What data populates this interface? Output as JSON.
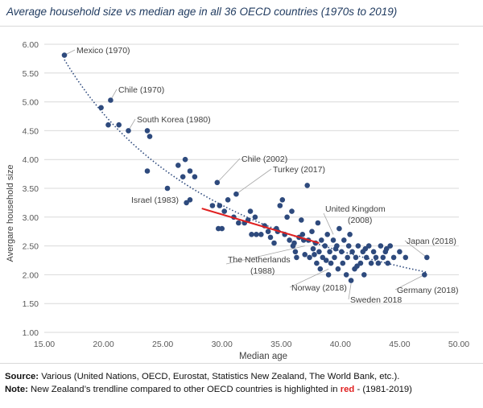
{
  "title": "Average household size vs median age in all 36 OECD countries (1970s to 2019)",
  "footer": {
    "source_label": "Source:",
    "source_text": "Various (United Nations, OECD, Eurostat, Statistics New Zealand, The World Bank, etc.).",
    "note_label": "Note:",
    "note_text_before": "New Zealand’s trendline compared to other OECD countries is highlighted in",
    "note_red_word": "red",
    "note_text_after": "- (1981-2019)"
  },
  "colors": {
    "points": "#2e4a7d",
    "trendline": "#2e4a7d",
    "highlight": "#e02020",
    "grid": "#d9d9d9",
    "leader": "#a6a6a6"
  },
  "chart_data": {
    "type": "scatter",
    "xlabel": "Median age",
    "ylabel": "Avergare household size",
    "xlim": [
      15,
      50
    ],
    "ylim": [
      1,
      6
    ],
    "xticks": [
      "15.00",
      "20.00",
      "25.00",
      "30.00",
      "35.00",
      "40.00",
      "45.00",
      "50.00"
    ],
    "yticks": [
      "1.00",
      "1.50",
      "2.00",
      "2.50",
      "3.00",
      "3.50",
      "4.00",
      "4.50",
      "5.00",
      "5.50",
      "6.00"
    ],
    "grid": "horizontal",
    "trendline": "dotted power trend",
    "highlight_series": {
      "x": [
        28.3,
        38.2
      ],
      "y": [
        3.15,
        2.55
      ]
    },
    "annotations": [
      {
        "text": "Mexico (1970)",
        "x": 16.7,
        "y": 5.81
      },
      {
        "text": "Chile (1970)",
        "x": 20.6,
        "y": 5.03
      },
      {
        "text": "South Korea (1980)",
        "x": 22.1,
        "y": 4.5
      },
      {
        "text": "Chile (2002)",
        "x": 29.6,
        "y": 3.6
      },
      {
        "text": "Turkey (2017)",
        "x": 31.2,
        "y": 3.4
      },
      {
        "text": "Israel (1983)",
        "x": 25.4,
        "y": 3.5
      },
      {
        "text": "United Kingdom (2008)",
        "x": 39.4,
        "y": 2.7
      },
      {
        "text": "Japan (2018)",
        "x": 47.3,
        "y": 2.3
      },
      {
        "text": "The Netherlands (1988)",
        "x": 37.0,
        "y": 2.5
      },
      {
        "text": "Norway (2018)",
        "x": 39.0,
        "y": 2.1
      },
      {
        "text": "Sweden 2018",
        "x": 40.9,
        "y": 1.85
      },
      {
        "text": "Germany (2018)",
        "x": 47.1,
        "y": 2.0
      }
    ],
    "points": [
      [
        16.7,
        5.81
      ],
      [
        20.6,
        5.03
      ],
      [
        19.8,
        4.9
      ],
      [
        20.4,
        4.6
      ],
      [
        21.3,
        4.6
      ],
      [
        22.1,
        4.5
      ],
      [
        23.7,
        4.5
      ],
      [
        23.9,
        4.4
      ],
      [
        23.7,
        3.8
      ],
      [
        26.3,
        3.9
      ],
      [
        26.9,
        4.0
      ],
      [
        27.3,
        3.8
      ],
      [
        26.7,
        3.7
      ],
      [
        27.7,
        3.7
      ],
      [
        27.0,
        3.25
      ],
      [
        27.3,
        3.3
      ],
      [
        25.4,
        3.5
      ],
      [
        29.6,
        3.6
      ],
      [
        29.8,
        3.2
      ],
      [
        29.2,
        3.2
      ],
      [
        30.2,
        3.1
      ],
      [
        29.7,
        2.8
      ],
      [
        30.0,
        2.8
      ],
      [
        30.5,
        3.3
      ],
      [
        31.2,
        3.4
      ],
      [
        31.0,
        3.0
      ],
      [
        31.4,
        2.9
      ],
      [
        31.9,
        2.9
      ],
      [
        32.2,
        2.95
      ],
      [
        32.4,
        3.1
      ],
      [
        32.8,
        3.0
      ],
      [
        32.5,
        2.7
      ],
      [
        32.9,
        2.7
      ],
      [
        33.3,
        2.7
      ],
      [
        33.6,
        2.85
      ],
      [
        33.9,
        2.75
      ],
      [
        34.1,
        2.65
      ],
      [
        34.4,
        2.55
      ],
      [
        34.6,
        2.8
      ],
      [
        34.9,
        3.2
      ],
      [
        35.1,
        3.3
      ],
      [
        35.3,
        2.7
      ],
      [
        35.5,
        3.0
      ],
      [
        35.7,
        2.6
      ],
      [
        35.9,
        3.1
      ],
      [
        36.0,
        2.5
      ],
      [
        36.2,
        2.4
      ],
      [
        36.3,
        2.3
      ],
      [
        36.5,
        2.65
      ],
      [
        36.7,
        2.95
      ],
      [
        36.9,
        2.6
      ],
      [
        37.0,
        2.35
      ],
      [
        37.2,
        3.55
      ],
      [
        37.3,
        2.6
      ],
      [
        37.4,
        2.3
      ],
      [
        37.6,
        2.75
      ],
      [
        37.7,
        2.45
      ],
      [
        37.9,
        2.55
      ],
      [
        38.0,
        2.2
      ],
      [
        38.1,
        2.9
      ],
      [
        38.2,
        2.4
      ],
      [
        38.3,
        2.1
      ],
      [
        38.4,
        2.6
      ],
      [
        38.5,
        2.3
      ],
      [
        38.7,
        2.5
      ],
      [
        38.9,
        2.7
      ],
      [
        39.0,
        2.0
      ],
      [
        39.1,
        2.4
      ],
      [
        39.2,
        2.2
      ],
      [
        39.4,
        2.6
      ],
      [
        39.5,
        2.3
      ],
      [
        39.7,
        2.5
      ],
      [
        39.8,
        2.1
      ],
      [
        39.9,
        2.8
      ],
      [
        40.1,
        2.4
      ],
      [
        40.2,
        2.2
      ],
      [
        40.3,
        2.6
      ],
      [
        40.5,
        2.0
      ],
      [
        40.6,
        2.3
      ],
      [
        40.7,
        2.5
      ],
      [
        40.9,
        1.9
      ],
      [
        41.0,
        2.4
      ],
      [
        41.2,
        2.1
      ],
      [
        41.3,
        2.3
      ],
      [
        41.5,
        2.5
      ],
      [
        41.7,
        2.2
      ],
      [
        41.9,
        2.4
      ],
      [
        42.0,
        2.0
      ],
      [
        42.2,
        2.3
      ],
      [
        42.4,
        2.5
      ],
      [
        42.6,
        2.2
      ],
      [
        42.8,
        2.4
      ],
      [
        43.0,
        2.3
      ],
      [
        43.2,
        2.2
      ],
      [
        43.4,
        2.5
      ],
      [
        43.6,
        2.3
      ],
      [
        43.8,
        2.4
      ],
      [
        44.0,
        2.2
      ],
      [
        44.2,
        2.5
      ],
      [
        44.5,
        2.3
      ],
      [
        45.0,
        2.4
      ],
      [
        45.5,
        2.3
      ],
      [
        47.3,
        2.3
      ],
      [
        47.1,
        2.0
      ],
      [
        36.8,
        2.7
      ],
      [
        37.8,
        2.35
      ],
      [
        39.6,
        2.45
      ],
      [
        40.8,
        2.7
      ],
      [
        42.1,
        2.45
      ],
      [
        34.7,
        2.75
      ],
      [
        36.1,
        2.55
      ],
      [
        38.8,
        2.25
      ],
      [
        41.4,
        2.15
      ],
      [
        43.9,
        2.45
      ]
    ]
  }
}
